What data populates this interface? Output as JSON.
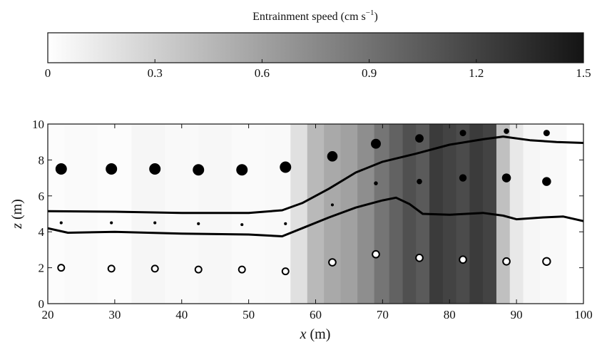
{
  "colorbar": {
    "title": "Entrainment speed (cm s",
    "title_sup": "−1",
    "title_close": ")",
    "min": 0,
    "max": 1.5,
    "ticks": [
      0,
      0.3,
      0.6,
      0.9,
      1.2,
      1.5
    ],
    "tick_labels": [
      "0",
      "0.3",
      "0.6",
      "0.9",
      "1.2",
      "1.5"
    ],
    "color_low": "#ffffff",
    "color_high": "#141414"
  },
  "chart_data": {
    "type": "heatmap",
    "xlabel_var": "x",
    "xlabel_unit": " (m)",
    "ylabel_var": "z",
    "ylabel_unit": " (m)",
    "xlim": [
      20,
      100
    ],
    "ylim": [
      0,
      10
    ],
    "xticks": [
      20,
      30,
      40,
      50,
      60,
      70,
      80,
      90,
      100
    ],
    "yticks": [
      0,
      2,
      4,
      6,
      8,
      10
    ],
    "entrainment_speed": {
      "x": [
        20,
        25,
        30,
        35,
        40,
        45,
        50,
        55,
        57.5,
        60,
        62.5,
        65,
        67.5,
        70,
        72,
        74,
        76,
        78,
        80,
        82,
        84,
        86,
        88,
        90,
        92,
        95,
        100
      ],
      "values": [
        0.02,
        0.03,
        0.02,
        0.06,
        0.04,
        0.05,
        0.03,
        0.04,
        0.2,
        0.45,
        0.55,
        0.6,
        0.72,
        0.88,
        1.0,
        1.12,
        1.05,
        1.25,
        1.2,
        1.15,
        1.25,
        1.2,
        0.4,
        0.15,
        0.06,
        0.04,
        0.0
      ]
    },
    "lines": [
      {
        "points": [
          [
            20,
            5.15
          ],
          [
            30,
            5.12
          ],
          [
            40,
            5.05
          ],
          [
            50,
            5.05
          ],
          [
            55,
            5.2
          ],
          [
            58,
            5.6
          ],
          [
            62,
            6.4
          ],
          [
            66,
            7.3
          ],
          [
            70,
            7.9
          ],
          [
            75,
            8.35
          ],
          [
            80,
            8.85
          ],
          [
            85,
            9.15
          ],
          [
            88,
            9.3
          ],
          [
            92,
            9.1
          ],
          [
            96,
            9.0
          ],
          [
            100,
            8.95
          ]
        ]
      },
      {
        "points": [
          [
            20,
            4.2
          ],
          [
            23,
            3.95
          ],
          [
            30,
            4.0
          ],
          [
            40,
            3.9
          ],
          [
            50,
            3.85
          ],
          [
            55,
            3.75
          ],
          [
            58,
            4.2
          ],
          [
            62,
            4.8
          ],
          [
            66,
            5.35
          ],
          [
            70,
            5.75
          ],
          [
            72,
            5.9
          ],
          [
            74,
            5.55
          ],
          [
            76,
            5.0
          ],
          [
            80,
            4.95
          ],
          [
            85,
            5.05
          ],
          [
            88,
            4.9
          ],
          [
            90,
            4.7
          ],
          [
            94,
            4.8
          ],
          [
            97,
            4.85
          ],
          [
            100,
            4.6
          ]
        ]
      }
    ],
    "markers": [
      {
        "style": "filled",
        "points": [
          [
            22,
            7.5,
            1.0
          ],
          [
            29.5,
            7.5,
            1.0
          ],
          [
            36,
            7.5,
            1.0
          ],
          [
            42.5,
            7.45,
            1.0
          ],
          [
            49,
            7.45,
            1.0
          ],
          [
            55.5,
            7.6,
            1.0
          ],
          [
            62.5,
            8.2,
            0.9
          ],
          [
            69,
            8.9,
            0.85
          ],
          [
            75.5,
            9.2,
            0.7
          ],
          [
            82,
            9.5,
            0.5
          ],
          [
            88.5,
            9.6,
            0.4
          ],
          [
            94.5,
            9.5,
            0.5
          ]
        ]
      },
      {
        "style": "filled",
        "points": [
          [
            22,
            4.5,
            0.15
          ],
          [
            29.5,
            4.5,
            0.15
          ],
          [
            36,
            4.5,
            0.15
          ],
          [
            42.5,
            4.45,
            0.15
          ],
          [
            49,
            4.4,
            0.15
          ],
          [
            55.5,
            4.45,
            0.15
          ],
          [
            62.5,
            5.5,
            0.15
          ],
          [
            69,
            6.7,
            0.25
          ],
          [
            75.5,
            6.8,
            0.4
          ],
          [
            82,
            7.0,
            0.6
          ],
          [
            88.5,
            7.0,
            0.75
          ],
          [
            94.5,
            6.8,
            0.75
          ]
        ]
      },
      {
        "style": "open",
        "points": [
          [
            22,
            2.0,
            0.5
          ],
          [
            29.5,
            1.95,
            0.5
          ],
          [
            36,
            1.95,
            0.5
          ],
          [
            42.5,
            1.9,
            0.5
          ],
          [
            49,
            1.9,
            0.5
          ],
          [
            55.5,
            1.8,
            0.5
          ],
          [
            62.5,
            2.3,
            0.55
          ],
          [
            69,
            2.75,
            0.55
          ],
          [
            75.5,
            2.55,
            0.55
          ],
          [
            82,
            2.45,
            0.55
          ],
          [
            88.5,
            2.35,
            0.55
          ],
          [
            94.5,
            2.35,
            0.6
          ]
        ]
      }
    ]
  }
}
